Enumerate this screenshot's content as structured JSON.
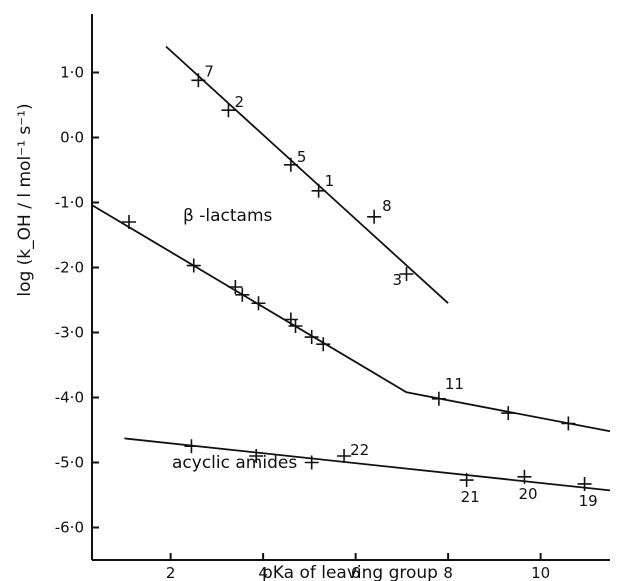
{
  "chart_data": {
    "type": "scatter",
    "title": "",
    "xlabel": "pKa  of  leaving group",
    "ylabel": "log (k_OH / l mol⁻¹ s⁻¹)",
    "xlim": [
      0.3,
      11.5
    ],
    "ylim": [
      -6.5,
      1.9
    ],
    "x_ticks": [
      2,
      4,
      6,
      8,
      10
    ],
    "x_tick_labels": [
      "2",
      "4",
      "6",
      "8",
      "10"
    ],
    "y_ticks": [
      1,
      0,
      -1,
      -2,
      -3,
      -4,
      -5,
      -6
    ],
    "y_tick_labels": [
      "1·0",
      "0·0",
      "-1·0",
      "-2·0",
      "-3·0",
      "-4·0",
      "-5·0",
      "-6·0"
    ],
    "grid": false,
    "series": [
      {
        "points": [
          {
            "x": 2.6,
            "y": 0.88,
            "label": "7"
          },
          {
            "x": 3.25,
            "y": 0.42,
            "label": "2"
          },
          {
            "x": 4.6,
            "y": -0.42,
            "label": "5"
          },
          {
            "x": 5.2,
            "y": -0.82,
            "label": "1"
          },
          {
            "x": 6.4,
            "y": -1.22,
            "label": "8"
          },
          {
            "x": 7.1,
            "y": -2.1,
            "label": "3"
          }
        ],
        "fit_line": [
          [
            1.9,
            1.4
          ],
          [
            8.0,
            -2.55
          ]
        ]
      },
      {
        "name": "β -lactams",
        "points": [
          {
            "x": 1.1,
            "y": -1.3
          },
          {
            "x": 2.5,
            "y": -1.97
          },
          {
            "x": 3.4,
            "y": -2.3
          },
          {
            "x": 3.55,
            "y": -2.42
          },
          {
            "x": 3.9,
            "y": -2.55
          },
          {
            "x": 4.6,
            "y": -2.8
          },
          {
            "x": 4.7,
            "y": -2.9
          },
          {
            "x": 5.05,
            "y": -3.07
          },
          {
            "x": 5.3,
            "y": -3.18
          },
          {
            "x": 7.8,
            "y": -4.02,
            "label": "11"
          },
          {
            "x": 9.3,
            "y": -4.24
          },
          {
            "x": 10.6,
            "y": -4.4
          }
        ],
        "fit_line": [
          [
            0.3,
            -1.04
          ],
          [
            7.1,
            -3.92
          ],
          [
            11.5,
            -4.52
          ]
        ]
      },
      {
        "name": "acyclic amides",
        "points": [
          {
            "x": 2.45,
            "y": -4.75
          },
          {
            "x": 3.85,
            "y": -4.9
          },
          {
            "x": 5.05,
            "y": -5.0
          },
          {
            "x": 5.75,
            "y": -4.9,
            "label": "22"
          },
          {
            "x": 8.4,
            "y": -5.27,
            "label": "21"
          },
          {
            "x": 9.65,
            "y": -5.22,
            "label": "20"
          },
          {
            "x": 10.95,
            "y": -5.33,
            "label": "19"
          }
        ],
        "fit_line": [
          [
            1.0,
            -4.63
          ],
          [
            11.5,
            -5.43
          ]
        ]
      }
    ]
  }
}
